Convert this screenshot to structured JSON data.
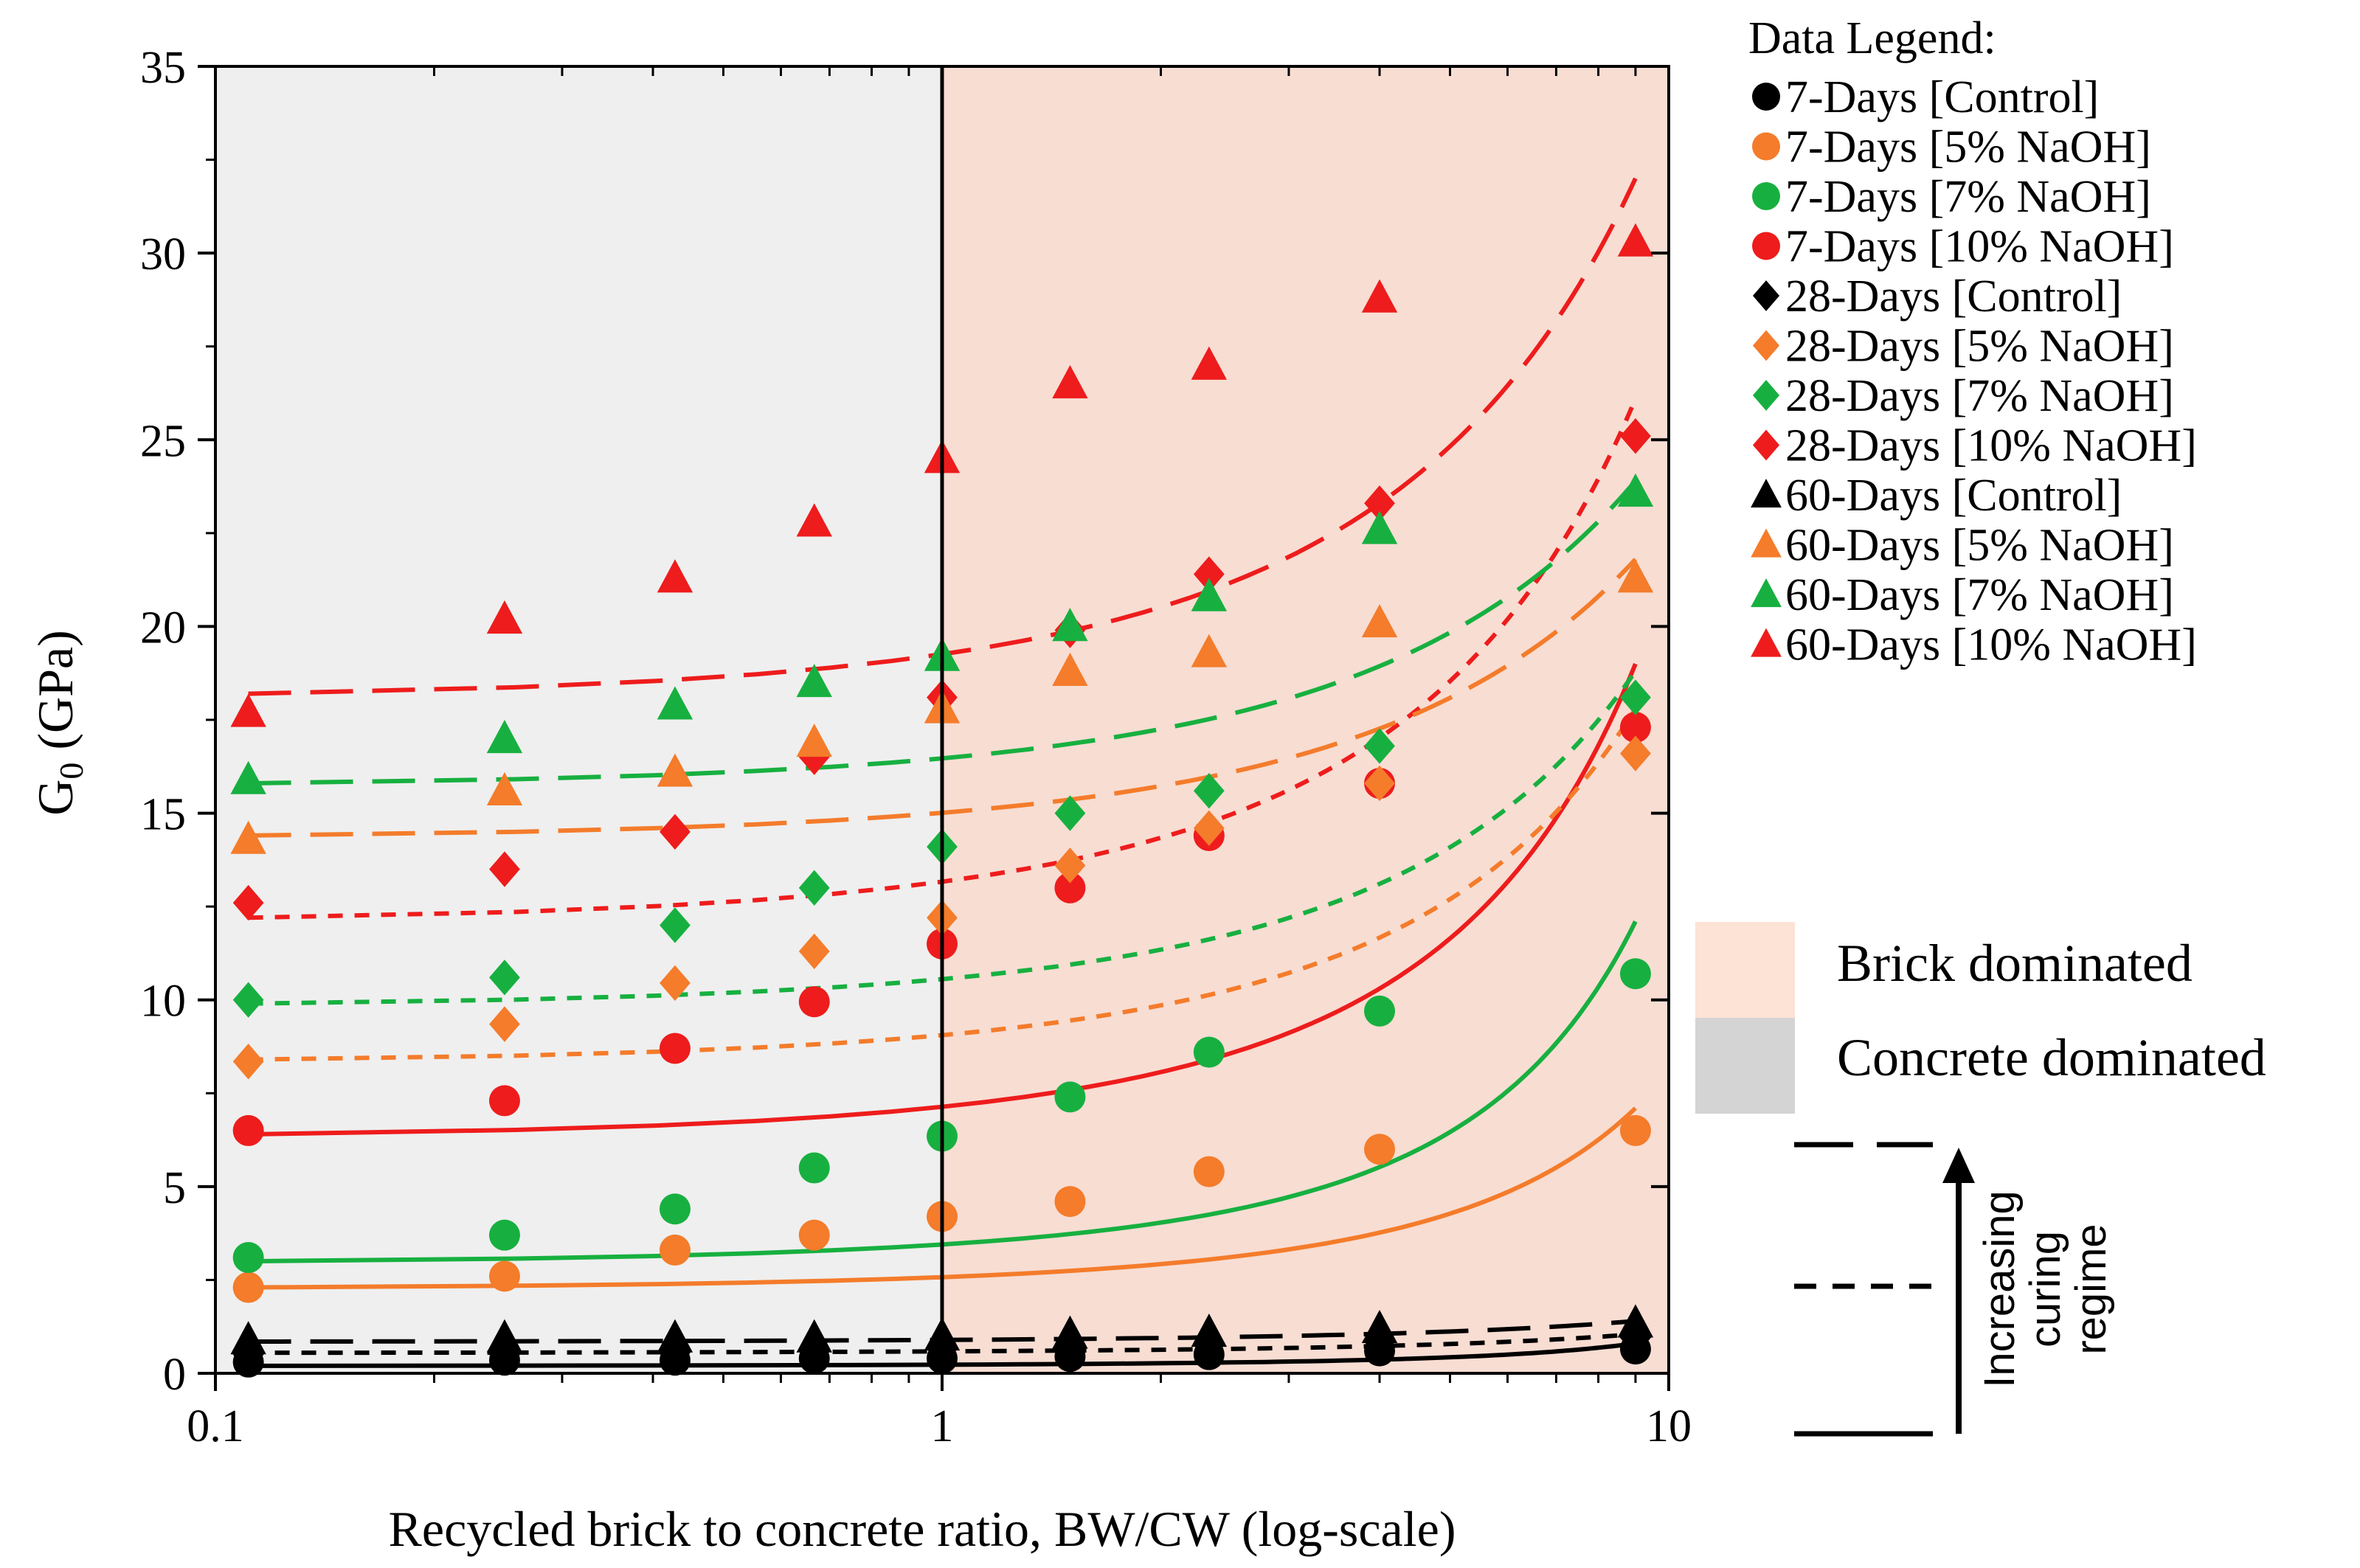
{
  "chart_data": {
    "type": "scatter",
    "title": "",
    "xlabel": "Recycled brick to concrete ratio, BW/CW (log-scale)",
    "ylabel_main": "G",
    "ylabel_sub": "0",
    "ylabel_rest": " (GPa)",
    "xscale": "log",
    "xlim": [
      0.1,
      10
    ],
    "ylim": [
      0,
      35
    ],
    "x_ticks": [
      {
        "value": 0.1,
        "label": "0.1"
      },
      {
        "value": 1,
        "label": "1"
      },
      {
        "value": 10,
        "label": "10"
      }
    ],
    "y_ticks": [
      0,
      5,
      10,
      15,
      20,
      25,
      30,
      35
    ],
    "y_tick_labels": [
      "0",
      "5",
      "10",
      "15",
      "20",
      "25",
      "30",
      "35"
    ],
    "x": [
      0.111,
      0.25,
      0.429,
      0.667,
      1.0,
      1.5,
      2.33,
      4.0,
      9.0
    ],
    "regions": {
      "concrete": {
        "label": "Concrete dominated",
        "x_range": [
          0.1,
          1
        ],
        "color": "#efefef"
      },
      "brick": {
        "label": "Brick dominated",
        "x_range": [
          1,
          10
        ],
        "color": "#f8ddd3"
      },
      "divider_x": 1
    },
    "legend": {
      "title": "Data Legend:",
      "position": "right"
    },
    "series": [
      {
        "name": "7-Days [Control]",
        "marker": "circle",
        "color": "#000000",
        "line": "solid",
        "values": [
          0.3,
          0.35,
          0.35,
          0.4,
          0.4,
          0.45,
          0.5,
          0.6,
          0.65
        ],
        "fit": [
          0.2,
          0.8
        ]
      },
      {
        "name": "7-Days [5% NaOH]",
        "marker": "circle",
        "color": "#f47c2b",
        "line": "solid",
        "values": [
          2.3,
          2.6,
          3.3,
          3.7,
          4.2,
          4.6,
          5.4,
          6.0,
          6.5
        ],
        "fit": [
          2.3,
          7.1
        ]
      },
      {
        "name": "7-Days [7% NaOH]",
        "marker": "circle",
        "color": "#17b040",
        "line": "solid",
        "values": [
          3.1,
          3.7,
          4.4,
          5.5,
          6.35,
          7.4,
          8.6,
          9.7,
          10.7
        ],
        "fit": [
          3.0,
          12.1
        ]
      },
      {
        "name": "7-Days [10% NaOH]",
        "marker": "circle",
        "color": "#ee1c1c",
        "line": "solid",
        "values": [
          6.5,
          7.3,
          8.7,
          9.95,
          11.5,
          13.0,
          14.4,
          15.8,
          17.3
        ],
        "fit": [
          6.4,
          19.0
        ]
      },
      {
        "name": "28-Days [Control]",
        "marker": "diamond",
        "color": "#000000",
        "line": "dash",
        "values": [
          0.5,
          0.5,
          0.55,
          0.6,
          0.65,
          0.7,
          0.75,
          0.85,
          0.95
        ],
        "fit": [
          0.55,
          1.05
        ]
      },
      {
        "name": "28-Days [5% NaOH]",
        "marker": "diamond",
        "color": "#f47c2b",
        "line": "dash",
        "values": [
          8.35,
          9.35,
          10.45,
          11.3,
          12.2,
          13.6,
          14.6,
          15.8,
          16.6
        ],
        "fit": [
          8.4,
          17.8
        ]
      },
      {
        "name": "28-Days [7% NaOH]",
        "marker": "diamond",
        "color": "#17b040",
        "line": "dash",
        "values": [
          10.0,
          10.6,
          12.0,
          13.0,
          14.1,
          15.0,
          15.6,
          16.8,
          18.1
        ],
        "fit": [
          9.9,
          18.8
        ]
      },
      {
        "name": "28-Days [10% NaOH]",
        "marker": "diamond",
        "color": "#ee1c1c",
        "line": "dash",
        "values": [
          12.6,
          13.5,
          14.5,
          16.5,
          18.1,
          19.9,
          21.4,
          23.3,
          25.1
        ],
        "fit": [
          12.2,
          26.1
        ]
      },
      {
        "name": "60-Days [Control]",
        "marker": "triangle",
        "color": "#000000",
        "line": "longdash",
        "values": [
          0.9,
          0.95,
          0.95,
          0.95,
          1.0,
          1.05,
          1.1,
          1.2,
          1.35
        ],
        "fit": [
          0.85,
          1.4
        ]
      },
      {
        "name": "60-Days [5% NaOH]",
        "marker": "triangle",
        "color": "#f47c2b",
        "line": "longdash",
        "values": [
          14.3,
          15.6,
          16.1,
          16.9,
          17.8,
          18.8,
          19.3,
          20.1,
          21.3
        ],
        "fit": [
          14.4,
          21.8
        ]
      },
      {
        "name": "60-Days [7% NaOH]",
        "marker": "triangle",
        "color": "#17b040",
        "line": "longdash",
        "values": [
          15.9,
          17.0,
          17.9,
          18.5,
          19.2,
          20.0,
          20.8,
          22.6,
          23.6
        ],
        "fit": [
          15.8,
          23.9
        ]
      },
      {
        "name": "60-Days [10% NaOH]",
        "marker": "triangle",
        "color": "#ee1c1c",
        "line": "longdash",
        "values": [
          17.7,
          20.2,
          21.3,
          22.8,
          24.5,
          26.5,
          27.0,
          28.8,
          30.3
        ],
        "fit": [
          18.2,
          32.0
        ]
      }
    ],
    "curing_annotation": "Increasing curing regime",
    "curing_lines": [
      "Increasing",
      "curing",
      "regime"
    ]
  }
}
